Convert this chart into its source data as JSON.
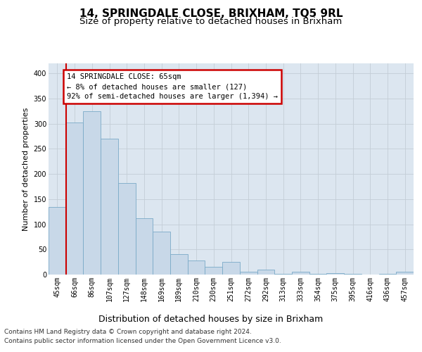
{
  "title": "14, SPRINGDALE CLOSE, BRIXHAM, TQ5 9RL",
  "subtitle": "Size of property relative to detached houses in Brixham",
  "xlabel": "Distribution of detached houses by size in Brixham",
  "ylabel": "Number of detached properties",
  "categories": [
    "45sqm",
    "66sqm",
    "86sqm",
    "107sqm",
    "127sqm",
    "148sqm",
    "169sqm",
    "189sqm",
    "210sqm",
    "230sqm",
    "251sqm",
    "272sqm",
    "292sqm",
    "313sqm",
    "333sqm",
    "354sqm",
    "375sqm",
    "395sqm",
    "416sqm",
    "436sqm",
    "457sqm"
  ],
  "values": [
    135,
    303,
    325,
    270,
    182,
    112,
    85,
    40,
    28,
    15,
    25,
    5,
    10,
    2,
    5,
    1,
    3,
    1,
    0,
    1,
    5
  ],
  "bar_color": "#c8d8e8",
  "bar_edge_color": "#7aaac8",
  "red_line_x": 0.5,
  "annotation_line1": "14 SPRINGDALE CLOSE: 65sqm",
  "annotation_line2": "← 8% of detached houses are smaller (127)",
  "annotation_line3": "92% of semi-detached houses are larger (1,394) →",
  "annotation_box_facecolor": "#ffffff",
  "annotation_box_edgecolor": "#cc0000",
  "ylim": [
    0,
    420
  ],
  "yticks": [
    0,
    50,
    100,
    150,
    200,
    250,
    300,
    350,
    400
  ],
  "grid_color": "#c4cdd6",
  "bg_color": "#dce6f0",
  "footer_line1": "Contains HM Land Registry data © Crown copyright and database right 2024.",
  "footer_line2": "Contains public sector information licensed under the Open Government Licence v3.0.",
  "title_fontsize": 11,
  "subtitle_fontsize": 9.5,
  "xlabel_fontsize": 9,
  "ylabel_fontsize": 8,
  "tick_fontsize": 7,
  "annotation_fontsize": 7.5,
  "footer_fontsize": 6.5
}
